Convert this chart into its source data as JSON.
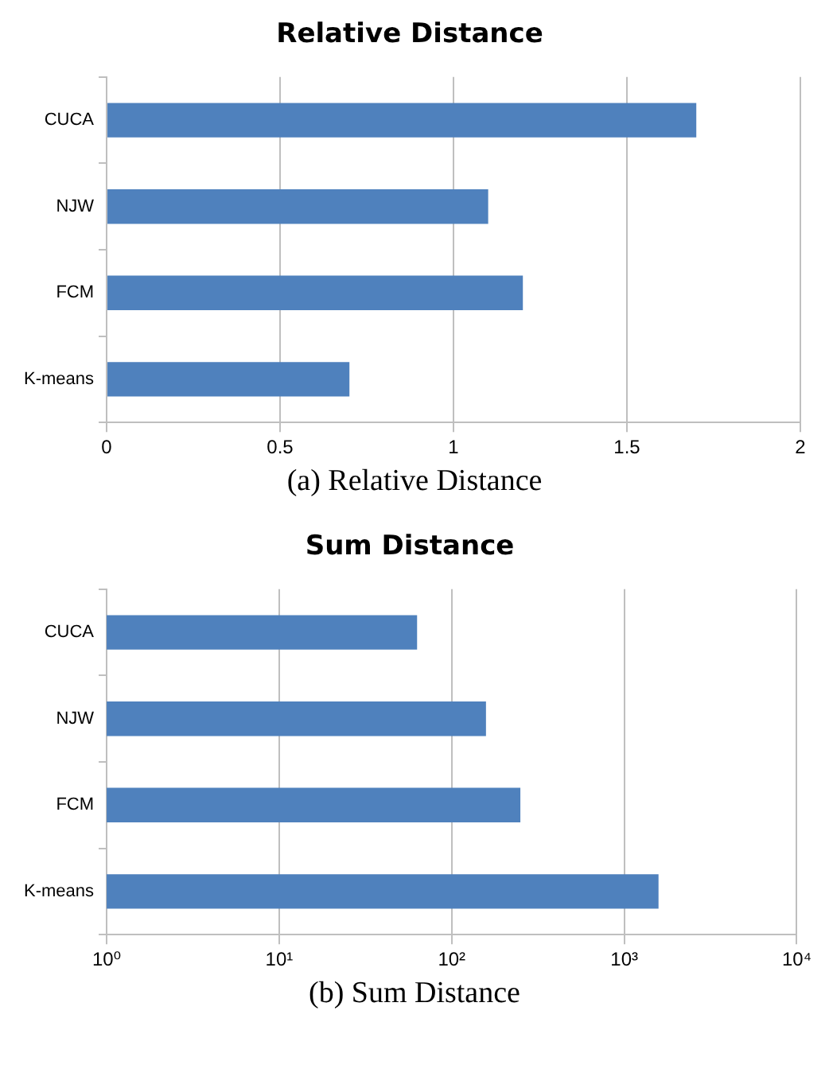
{
  "chart_data": [
    {
      "type": "bar",
      "orientation": "horizontal",
      "title": "Relative Distance",
      "categories": [
        "CUCA",
        "NJW",
        "FCM",
        "K-means"
      ],
      "values": [
        1.7,
        1.1,
        1.2,
        0.7
      ],
      "color": "#4f81bd",
      "xlim": [
        0,
        2
      ],
      "xticks": [
        0,
        0.5,
        1,
        1.5,
        2
      ],
      "grid": "x",
      "legend": false,
      "annotations": [
        "(a) Relative Distance"
      ]
    },
    {
      "type": "bar",
      "orientation": "horizontal",
      "title": "Sum Distance",
      "categories": [
        "CUCA",
        "NJW",
        "FCM",
        "K-means"
      ],
      "values": [
        63,
        158,
        250,
        1580
      ],
      "color": "#4f81bd",
      "log": "x",
      "xlim": [
        1,
        10000
      ],
      "xticks": [
        {
          "value": 1,
          "label": "10⁰"
        },
        {
          "value": 10,
          "label": "10¹"
        },
        {
          "value": 100,
          "label": "10²"
        },
        {
          "value": 1000,
          "label": "10³"
        },
        {
          "value": 10000,
          "label": "10⁴"
        }
      ],
      "grid": "x",
      "legend": false,
      "annotations": [
        "(b) Sum Distance"
      ]
    }
  ]
}
